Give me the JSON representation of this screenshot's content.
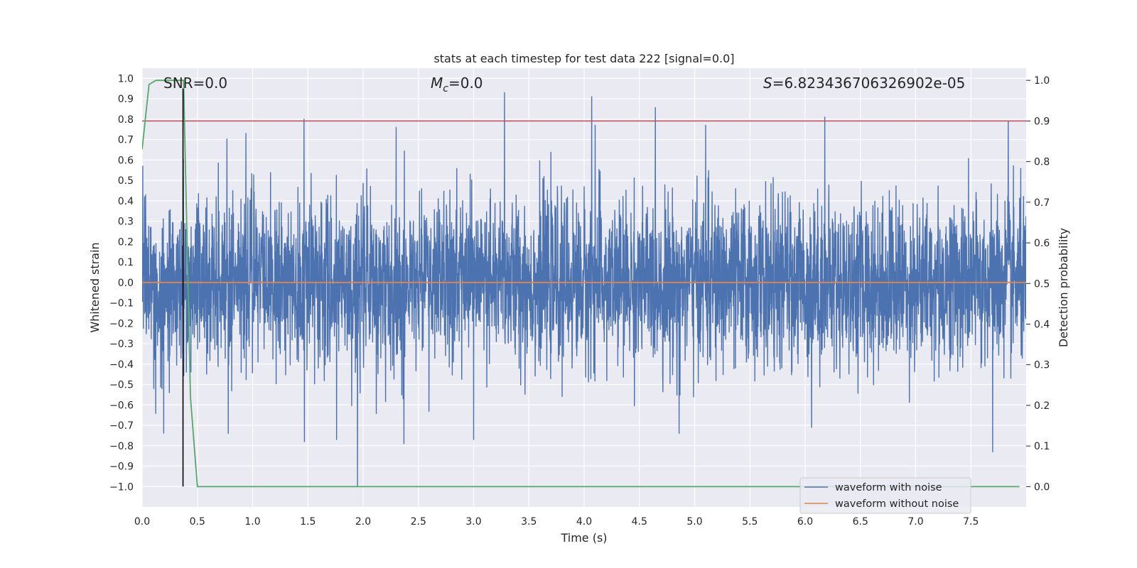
{
  "chart_data": {
    "type": "line",
    "title": "stats at each timestep for test data 222 [signal=0.0]",
    "xlabel": "Time (s)",
    "ylabel_left": "Whitened strain",
    "ylabel_right": "Detection probability",
    "xlim": [
      0.0,
      8.0
    ],
    "ylim_left": [
      -1.1,
      1.05
    ],
    "ylim_right": [
      -0.05,
      1.03
    ],
    "xticks": [
      "0.0",
      "0.5",
      "1.0",
      "1.5",
      "2.0",
      "2.5",
      "3.0",
      "3.5",
      "4.0",
      "4.5",
      "5.0",
      "5.5",
      "6.0",
      "6.5",
      "7.0",
      "7.5"
    ],
    "xtick_values": [
      0.0,
      0.5,
      1.0,
      1.5,
      2.0,
      2.5,
      3.0,
      3.5,
      4.0,
      4.5,
      5.0,
      5.5,
      6.0,
      6.5,
      7.0,
      7.5
    ],
    "yticks_left": [
      "1.0",
      "0.9",
      "0.8",
      "0.7",
      "0.6",
      "0.5",
      "0.4",
      "0.3",
      "0.2",
      "0.1",
      "0.0",
      "−0.1",
      "−0.2",
      "−0.3",
      "−0.4",
      "−0.5",
      "−0.6",
      "−0.7",
      "−0.8",
      "−0.9",
      "−1.0"
    ],
    "ytick_values_left": [
      1.0,
      0.9,
      0.8,
      0.7,
      0.6,
      0.5,
      0.4,
      0.3,
      0.2,
      0.1,
      0.0,
      -0.1,
      -0.2,
      -0.3,
      -0.4,
      -0.5,
      -0.6,
      -0.7,
      -0.8,
      -0.9,
      -1.0
    ],
    "yticks_right": [
      "1.0",
      "0.9",
      "0.8",
      "0.7",
      "0.6",
      "0.5",
      "0.4",
      "0.3",
      "0.2",
      "0.1",
      "0.0"
    ],
    "ytick_values_right": [
      1.0,
      0.9,
      0.8,
      0.7,
      0.6,
      0.5,
      0.4,
      0.3,
      0.2,
      0.1,
      0.0
    ],
    "annotations": {
      "snr": "SNR=0.0",
      "mc_symbol": "M",
      "mc_subscript": "c",
      "mc_value": "=0.0",
      "s_symbol": "S",
      "s_value": "=6.823436706326902e-05"
    },
    "threshold": {
      "value": 0.9,
      "axis": "right",
      "color": "#c44e52"
    },
    "marker_line": {
      "x": 0.37,
      "y_from": -1.0,
      "y_to": 0.95,
      "color": "#000000"
    },
    "series": [
      {
        "name": "waveform with noise",
        "axis": "left",
        "color": "#4c72b0",
        "kind": "noise",
        "samples": 4096,
        "t_start": 0.0,
        "t_end": 8.0,
        "sigma": 0.2,
        "clip": [
          -1.0,
          1.0
        ],
        "peaks": [
          {
            "t": 1.465,
            "v": 0.8
          },
          {
            "t": 3.28,
            "v": 0.93
          },
          {
            "t": 4.07,
            "v": 0.91
          },
          {
            "t": 4.1,
            "v": 0.77
          },
          {
            "t": 6.18,
            "v": 0.81
          },
          {
            "t": 7.84,
            "v": 0.79
          },
          {
            "t": 0.94,
            "v": 0.73
          },
          {
            "t": 5.1,
            "v": 0.77
          },
          {
            "t": 2.3,
            "v": 0.76
          },
          {
            "t": 1.95,
            "v": -1.0
          },
          {
            "t": 7.7,
            "v": -0.83
          },
          {
            "t": 1.47,
            "v": -0.78
          },
          {
            "t": 4.86,
            "v": -0.74
          },
          {
            "t": 2.37,
            "v": -0.79
          },
          {
            "t": 0.78,
            "v": -0.74
          },
          {
            "t": 1.76,
            "v": -0.77
          },
          {
            "t": 3.0,
            "v": -0.77
          },
          {
            "t": 6.06,
            "v": -0.71
          }
        ]
      },
      {
        "name": "waveform without noise",
        "axis": "left",
        "color": "#dd8452",
        "kind": "line",
        "x": [
          0.0,
          8.0
        ],
        "y": [
          0.0,
          0.0
        ]
      },
      {
        "name": "detection probability",
        "axis": "right",
        "color": "#55a868",
        "kind": "line",
        "x": [
          0.0,
          0.0625,
          0.125,
          0.375,
          0.4375,
          0.5,
          7.94
        ],
        "y": [
          0.83,
          0.99,
          1.0,
          1.0,
          0.22,
          0.0,
          0.0
        ]
      }
    ],
    "legend": {
      "location": "lower-right",
      "entries": [
        {
          "label": "waveform with noise",
          "color": "#4c72b0"
        },
        {
          "label": "waveform without noise",
          "color": "#dd8452"
        }
      ]
    },
    "style": {
      "plot_bg": "#eaeaf2",
      "grid": true,
      "grid_color": "#ffffff"
    }
  }
}
